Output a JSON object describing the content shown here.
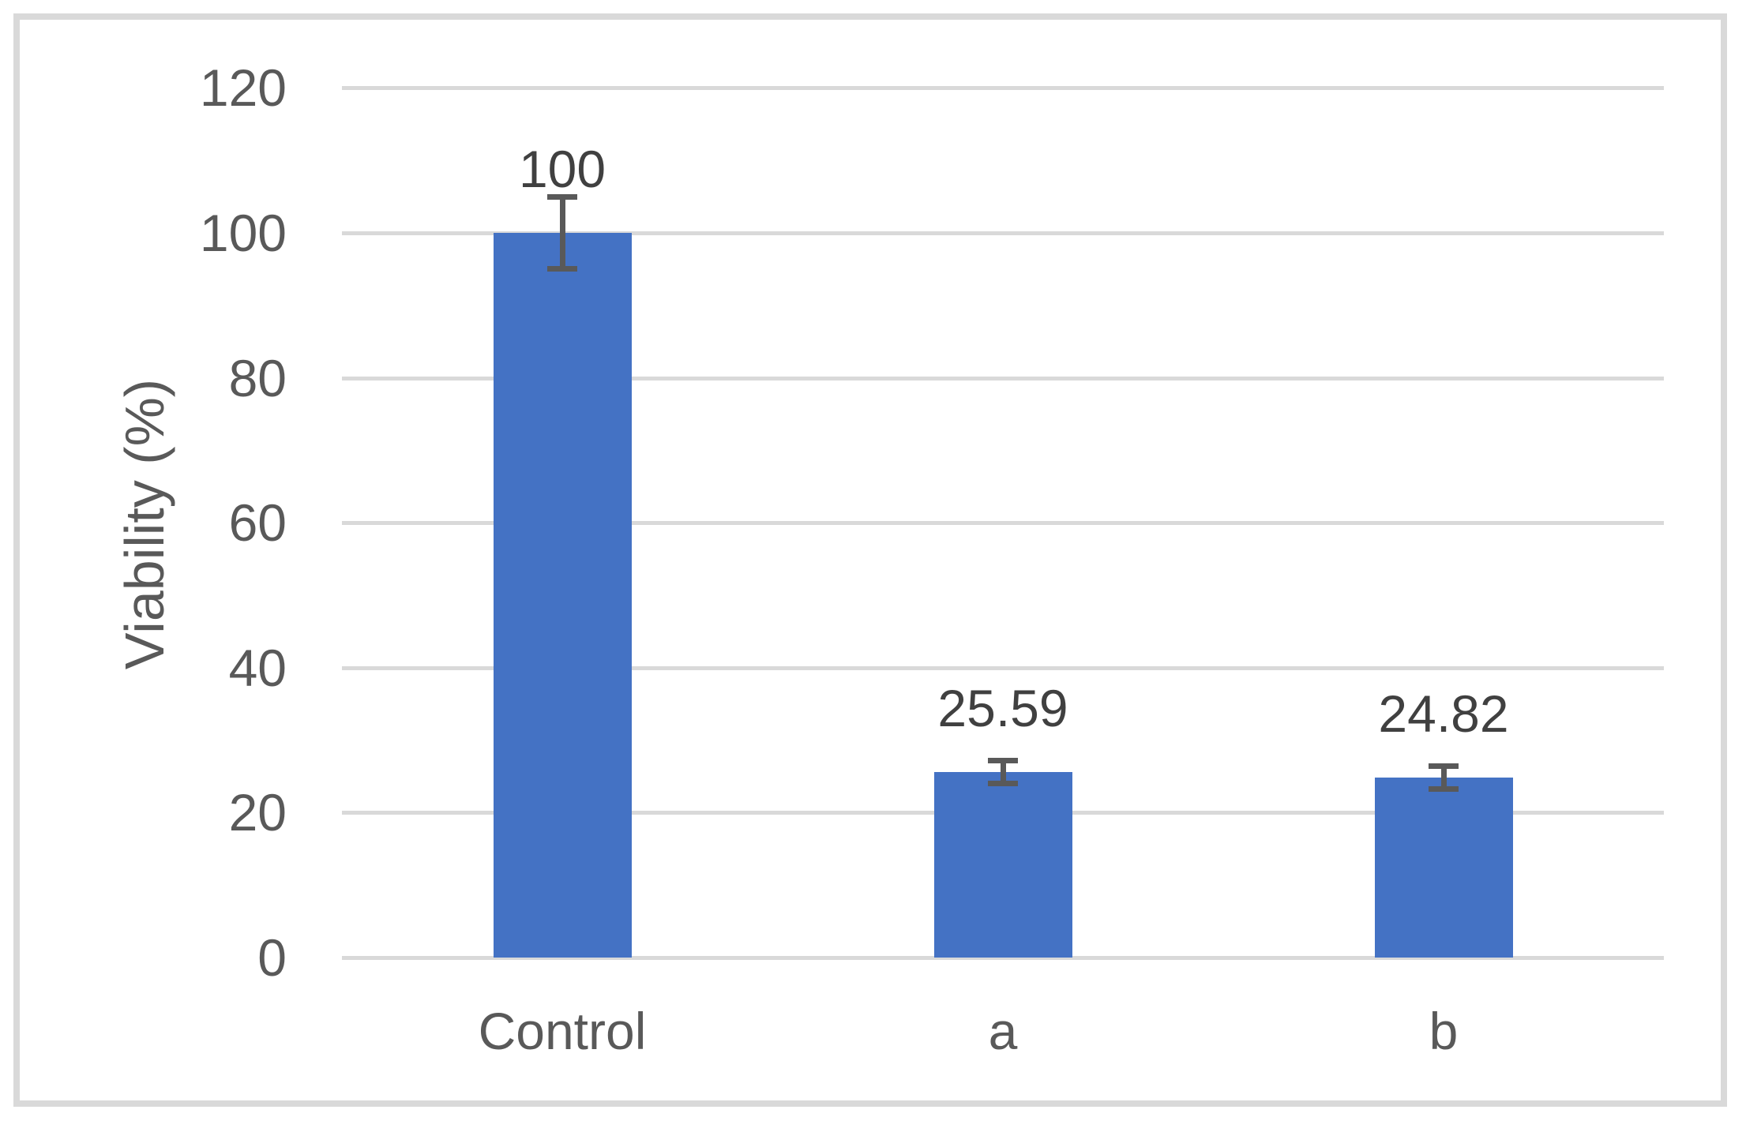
{
  "chart_data": {
    "type": "bar",
    "title": "",
    "categories": [
      "Control",
      "a",
      "b"
    ],
    "values": [
      100,
      25.59,
      24.82
    ],
    "data_labels": [
      "100",
      "25.59",
      "24.82"
    ],
    "error_bars": [
      5.0,
      1.6,
      1.6
    ],
    "xlabel": "",
    "ylabel": "Viability (%)",
    "ylim": [
      0,
      120
    ],
    "ytick_step": 20,
    "ytick_values": [
      0,
      20,
      40,
      60,
      80,
      100,
      120
    ],
    "ytick_labels": [
      "0",
      "20",
      "40",
      "60",
      "80",
      "100",
      "120"
    ],
    "grid": true,
    "legend_position": "none",
    "colors": {
      "bar": "#4472C4",
      "gridline": "#D9D9D9",
      "figure_border": "#D9D9D9",
      "axis_text": "#595959",
      "data_label_text": "#404040",
      "error_bar": "#595959",
      "background": "#FFFFFF"
    }
  }
}
